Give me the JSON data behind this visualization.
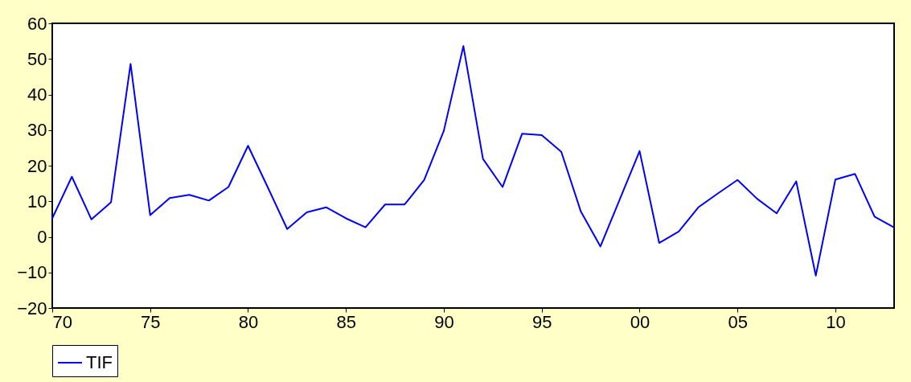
{
  "chart_data": {
    "type": "line",
    "x": [
      1970,
      1971,
      1972,
      1973,
      1974,
      1975,
      1976,
      1977,
      1978,
      1979,
      1980,
      1981,
      1982,
      1983,
      1984,
      1985,
      1986,
      1987,
      1988,
      1989,
      1990,
      1991,
      1992,
      1993,
      1994,
      1995,
      1996,
      1997,
      1998,
      1999,
      2000,
      2001,
      2002,
      2003,
      2004,
      2005,
      2006,
      2007,
      2008,
      2009,
      2010,
      2011,
      2012,
      2013
    ],
    "series": [
      {
        "name": "TIF",
        "color": "#0000ff",
        "values": [
          5.2,
          16.9,
          4.9,
          9.7,
          48.6,
          6.1,
          10.9,
          11.8,
          10.2,
          14.0,
          25.6,
          14.0,
          2.2,
          6.9,
          8.3,
          5.2,
          2.7,
          9.1,
          9.1,
          16.0,
          29.8,
          53.6,
          21.9,
          14.0,
          29.0,
          28.6,
          23.9,
          7.1,
          -2.7,
          10.7,
          24.1,
          -1.7,
          1.5,
          8.3,
          12.2,
          16.0,
          10.7,
          6.6,
          15.6,
          -10.9,
          16.1,
          17.7,
          5.7,
          2.6
        ]
      }
    ],
    "xlim": [
      1970,
      2013
    ],
    "xticks": [
      {
        "value": 1970,
        "label": "70"
      },
      {
        "value": 1975,
        "label": "75"
      },
      {
        "value": 1980,
        "label": "80"
      },
      {
        "value": 1985,
        "label": "85"
      },
      {
        "value": 1990,
        "label": "90"
      },
      {
        "value": 1995,
        "label": "95"
      },
      {
        "value": 2000,
        "label": "00"
      },
      {
        "value": 2005,
        "label": "05"
      },
      {
        "value": 2010,
        "label": "10"
      }
    ],
    "ylim": [
      -20,
      60
    ],
    "yticks": [
      -20,
      -10,
      0,
      10,
      20,
      30,
      40,
      50,
      60
    ],
    "grid": false,
    "legend": "bottom",
    "marker": "none",
    "line_style": "solid"
  }
}
